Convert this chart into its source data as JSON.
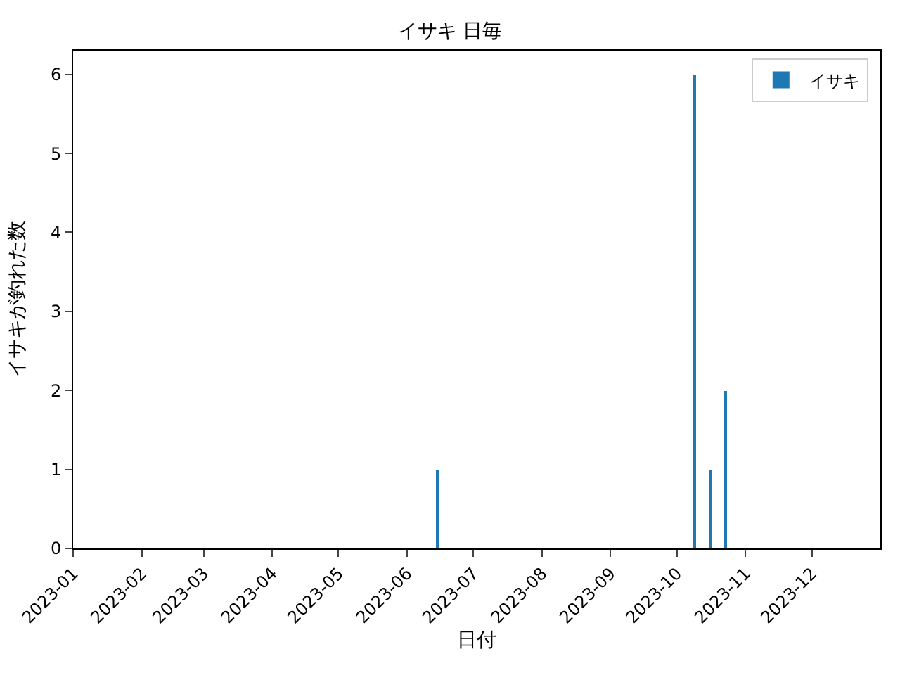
{
  "chart_data": {
    "type": "bar",
    "title": "イサキ 日毎",
    "xlabel": "日付",
    "ylabel": "イサキが釣れた数",
    "x": [
      "2023-06-15",
      "2023-10-09",
      "2023-10-16",
      "2023-10-23"
    ],
    "series": [
      {
        "name": "イサキ",
        "color": "#1f77b4",
        "values": [
          1,
          6,
          1,
          2
        ]
      }
    ],
    "xlim": [
      "2023-01-01",
      "2024-01-01"
    ],
    "xticks": [
      {
        "value": "2023-01-01",
        "label": "2023-01"
      },
      {
        "value": "2023-02-01",
        "label": "2023-02"
      },
      {
        "value": "2023-03-01",
        "label": "2023-03"
      },
      {
        "value": "2023-04-01",
        "label": "2023-04"
      },
      {
        "value": "2023-05-01",
        "label": "2023-05"
      },
      {
        "value": "2023-06-01",
        "label": "2023-06"
      },
      {
        "value": "2023-07-01",
        "label": "2023-07"
      },
      {
        "value": "2023-08-01",
        "label": "2023-08"
      },
      {
        "value": "2023-09-01",
        "label": "2023-09"
      },
      {
        "value": "2023-10-01",
        "label": "2023-10"
      },
      {
        "value": "2023-11-01",
        "label": "2023-11"
      },
      {
        "value": "2023-12-01",
        "label": "2023-12"
      }
    ],
    "ylim": [
      0,
      6.3
    ],
    "yticks": [
      0,
      1,
      2,
      3,
      4,
      5,
      6
    ],
    "legend": "top right"
  }
}
